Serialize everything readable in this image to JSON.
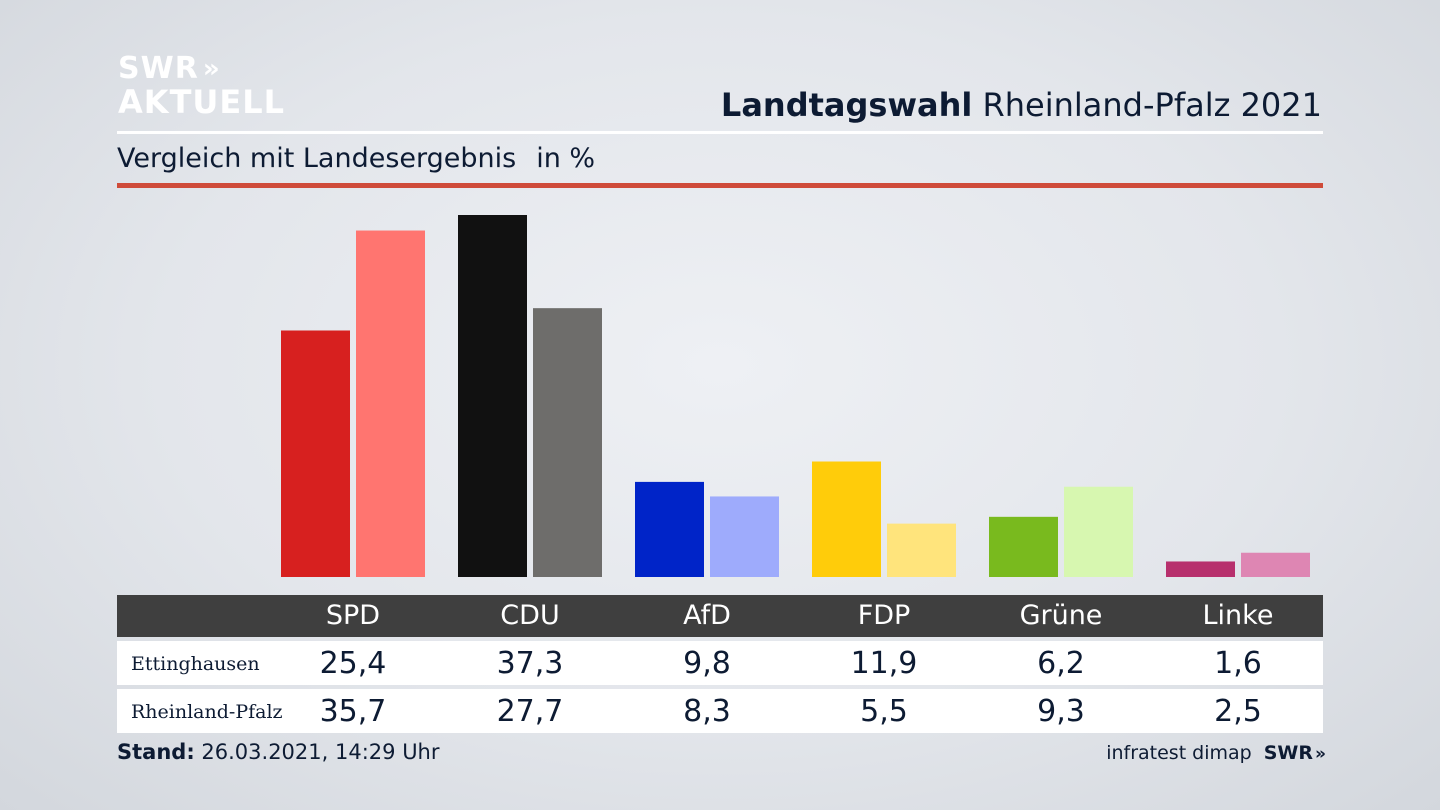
{
  "logo": {
    "line1": "SWR",
    "line2": "AKTUELL",
    "chevrons": "»",
    "icon": "swr-chevron-icon"
  },
  "header": {
    "title_bold": "Landtagswahl",
    "title_rest": "Rheinland-Pfalz 2021"
  },
  "subheader": {
    "text": "Vergleich mit Landesergebnis",
    "unit": "in %"
  },
  "colors": {
    "accent_rule": "#cf4b3a",
    "table_header": "#3f3f3f",
    "SPD": [
      "#d7201f",
      "#ff7570"
    ],
    "CDU": [
      "#111111",
      "#6e6d6b"
    ],
    "AfD": [
      "#0024c8",
      "#9eabfc"
    ],
    "FDP": [
      "#ffcc0a",
      "#ffe47c"
    ],
    "Grüne": [
      "#79ba1e",
      "#d7f7b0"
    ],
    "Linke": [
      "#b7306d",
      "#de86b3"
    ]
  },
  "chart_data": {
    "type": "bar",
    "title": "Landtagswahl Rheinland-Pfalz 2021",
    "subtitle": "Vergleich mit Landesergebnis",
    "unit": "in %",
    "categories": [
      "SPD",
      "CDU",
      "AfD",
      "FDP",
      "Grüne",
      "Linke"
    ],
    "series": [
      {
        "name": "Ettinghausen",
        "values": [
          "25,4",
          "37,3",
          "9,8",
          "11,9",
          "6,2",
          "1,6"
        ]
      },
      {
        "name": "Rheinland-Pfalz",
        "values": [
          "35,7",
          "27,7",
          "8,3",
          "5,5",
          "9,3",
          "2,5"
        ]
      }
    ],
    "ylim": [
      0,
      37.3
    ]
  },
  "footer": {
    "stand_label": "Stand:",
    "stand_value": "26.03.2021, 14:29 Uhr",
    "source": "infratest dimap",
    "brand": "SWR"
  }
}
